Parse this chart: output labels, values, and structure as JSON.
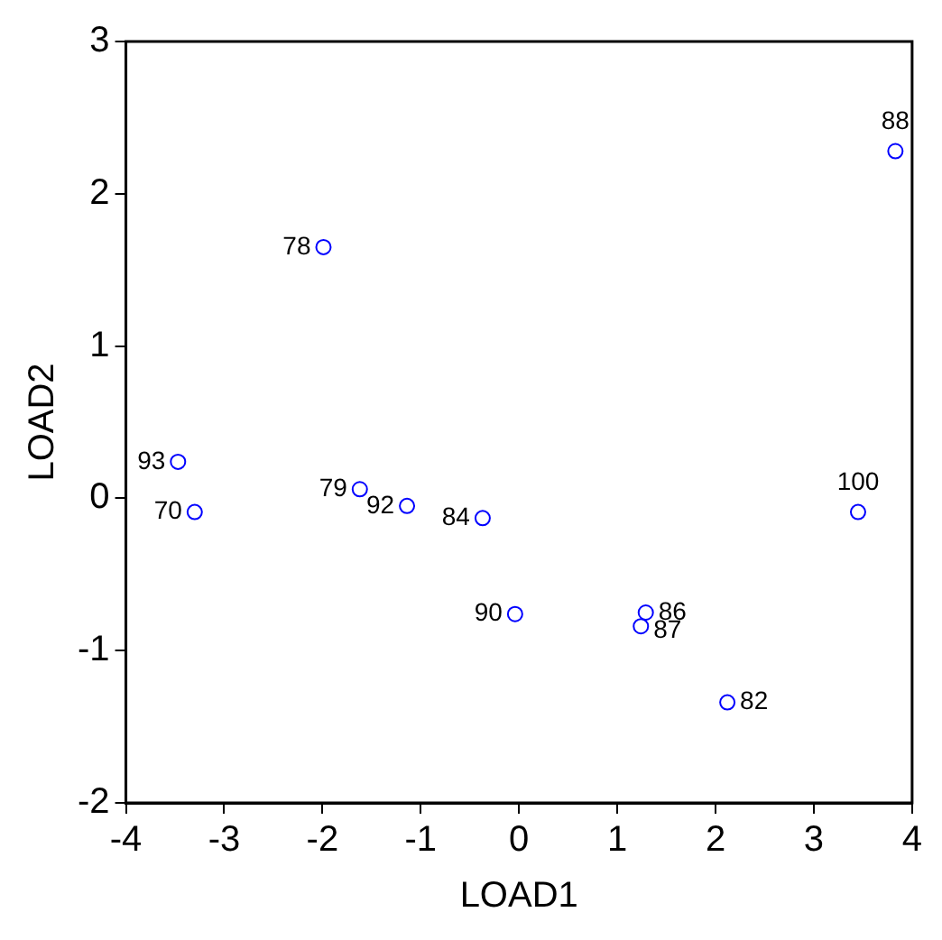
{
  "chart_data": {
    "type": "scatter",
    "xlabel": "LOAD1",
    "ylabel": "LOAD2",
    "x": [
      3.83,
      -1.99,
      -3.47,
      -3.3,
      -1.62,
      -1.14,
      -0.37,
      -0.04,
      1.29,
      1.24,
      2.12,
      3.45
    ],
    "series": [
      {
        "color": "#0000ff",
        "values": [
          2.28,
          1.65,
          0.24,
          -0.09,
          0.06,
          -0.05,
          -0.13,
          -0.76,
          -0.75,
          -0.84,
          -1.34,
          -0.09
        ]
      }
    ],
    "annotations": [
      {
        "text": "88",
        "x": 3.83,
        "y": 2.28
      },
      {
        "text": "78",
        "x": -1.99,
        "y": 1.65
      },
      {
        "text": "93",
        "x": -3.47,
        "y": 0.24
      },
      {
        "text": "70",
        "x": -3.3,
        "y": -0.09
      },
      {
        "text": "79",
        "x": -1.62,
        "y": 0.06
      },
      {
        "text": "92",
        "x": -1.14,
        "y": -0.05
      },
      {
        "text": "84",
        "x": -0.37,
        "y": -0.13
      },
      {
        "text": "90",
        "x": -0.04,
        "y": -0.76
      },
      {
        "text": "86",
        "x": 1.29,
        "y": -0.75
      },
      {
        "text": "87",
        "x": 1.24,
        "y": -0.84
      },
      {
        "text": "82",
        "x": 2.12,
        "y": -1.34
      },
      {
        "text": "100",
        "x": 3.45,
        "y": -0.09
      }
    ],
    "xlim": [
      -4,
      4
    ],
    "xticks": [
      -4,
      -3,
      -2,
      -1,
      0,
      1,
      2,
      3,
      4
    ],
    "ylim": [
      -2,
      3
    ],
    "yticks": [
      -2,
      -1,
      0,
      1,
      2,
      3
    ],
    "grid": false,
    "legend": false,
    "marker": "circle"
  }
}
